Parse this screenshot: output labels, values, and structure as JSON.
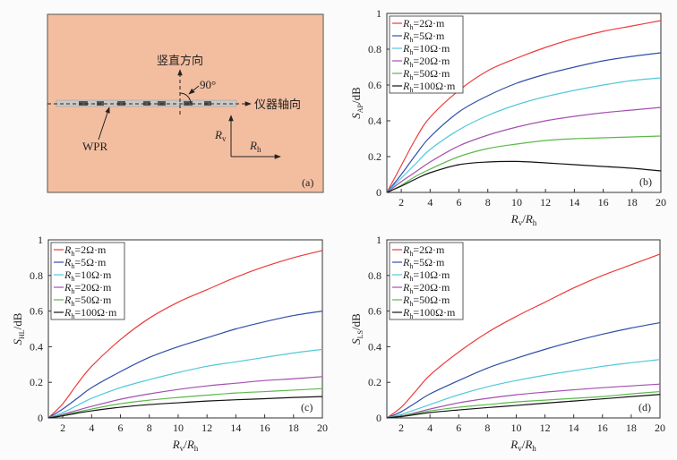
{
  "panel_a": {
    "vertical_label": "竖直方向",
    "angle_label": "90°",
    "axis_label": "仪器轴向",
    "tool_label": "WPR",
    "rv_main": "R",
    "rv_sub": "v",
    "rh_main": "R",
    "rh_sub": "h",
    "panel_tag": "(a)",
    "background_color": "#f3bea0"
  },
  "legend_labels": [
    "2Ω·m",
    "5Ω·m",
    "10Ω·m",
    "20Ω·m",
    "50Ω·m",
    "100Ω·m"
  ],
  "legend_prefix": {
    "main": "R",
    "sub": "h",
    "eq": "="
  },
  "series_colors": [
    "#ee3b3b",
    "#2f4fa8",
    "#52c8d8",
    "#a44fb0",
    "#5cb84a",
    "#111111"
  ],
  "chart_data": [
    {
      "type": "line",
      "panel_tag": "(b)",
      "ylabel": {
        "main": "S",
        "sub": "AP",
        "unit": "/dB"
      },
      "xlabel": {
        "a": "R",
        "a_sub": "v",
        "slash": "/",
        "b": "R",
        "b_sub": "h"
      },
      "xlim": [
        1,
        20
      ],
      "ylim": [
        0,
        1
      ],
      "xticks": [
        "2",
        "4",
        "6",
        "8",
        "10",
        "12",
        "14",
        "16",
        "18",
        "20"
      ],
      "yticks": [
        "0",
        "0.2",
        "0.4",
        "0.6",
        "0.8",
        "1"
      ],
      "legend_position": "top-left",
      "x": [
        1,
        2,
        3,
        4,
        6,
        8,
        10,
        12,
        14,
        16,
        18,
        20
      ],
      "series": [
        {
          "name": "Rh=2Ω·m",
          "values": [
            0,
            0.15,
            0.3,
            0.42,
            0.57,
            0.68,
            0.75,
            0.81,
            0.86,
            0.9,
            0.93,
            0.96
          ]
        },
        {
          "name": "Rh=5Ω·m",
          "values": [
            0,
            0.1,
            0.21,
            0.31,
            0.45,
            0.54,
            0.61,
            0.66,
            0.7,
            0.735,
            0.76,
            0.78
          ]
        },
        {
          "name": "Rh=10Ω·m",
          "values": [
            0,
            0.08,
            0.16,
            0.24,
            0.35,
            0.43,
            0.49,
            0.535,
            0.57,
            0.6,
            0.625,
            0.64
          ]
        },
        {
          "name": "Rh=20Ω·m",
          "values": [
            0,
            0.06,
            0.115,
            0.17,
            0.26,
            0.32,
            0.365,
            0.4,
            0.425,
            0.445,
            0.46,
            0.475
          ]
        },
        {
          "name": "Rh=50Ω·m",
          "values": [
            0,
            0.04,
            0.09,
            0.13,
            0.2,
            0.245,
            0.27,
            0.29,
            0.3,
            0.305,
            0.31,
            0.315
          ]
        },
        {
          "name": "Rh=100Ω·m",
          "values": [
            0,
            0.035,
            0.075,
            0.11,
            0.155,
            0.17,
            0.173,
            0.165,
            0.155,
            0.145,
            0.135,
            0.12
          ]
        }
      ]
    },
    {
      "type": "line",
      "panel_tag": "(c)",
      "ylabel": {
        "main": "S",
        "sub": "HL",
        "unit": "/dB"
      },
      "xlabel": {
        "a": "R",
        "a_sub": "v",
        "slash": "/",
        "b": "R",
        "b_sub": "h"
      },
      "xlim": [
        1,
        20
      ],
      "ylim": [
        0,
        1
      ],
      "xticks": [
        "2",
        "4",
        "6",
        "8",
        "10",
        "12",
        "14",
        "16",
        "18",
        "20"
      ],
      "yticks": [
        "0",
        "0.2",
        "0.4",
        "0.6",
        "0.8",
        "1"
      ],
      "legend_position": "top-left",
      "x": [
        1,
        2,
        3,
        4,
        6,
        8,
        10,
        12,
        14,
        16,
        18,
        20
      ],
      "series": [
        {
          "name": "Rh=2Ω·m",
          "values": [
            0,
            0.08,
            0.19,
            0.29,
            0.44,
            0.56,
            0.65,
            0.72,
            0.79,
            0.85,
            0.9,
            0.94
          ]
        },
        {
          "name": "Rh=5Ω·m",
          "values": [
            0,
            0.05,
            0.11,
            0.17,
            0.26,
            0.34,
            0.4,
            0.45,
            0.5,
            0.54,
            0.575,
            0.6
          ]
        },
        {
          "name": "Rh=10Ω·m",
          "values": [
            0,
            0.03,
            0.07,
            0.11,
            0.17,
            0.215,
            0.255,
            0.29,
            0.315,
            0.34,
            0.365,
            0.385
          ]
        },
        {
          "name": "Rh=20Ω·m",
          "values": [
            0,
            0.02,
            0.043,
            0.065,
            0.105,
            0.135,
            0.16,
            0.18,
            0.195,
            0.21,
            0.22,
            0.232
          ]
        },
        {
          "name": "Rh=50Ω·m",
          "values": [
            0,
            0.015,
            0.033,
            0.05,
            0.08,
            0.1,
            0.115,
            0.128,
            0.14,
            0.148,
            0.156,
            0.165
          ]
        },
        {
          "name": "Rh=100Ω·m",
          "values": [
            0,
            0.012,
            0.027,
            0.04,
            0.06,
            0.075,
            0.085,
            0.095,
            0.102,
            0.108,
            0.115,
            0.12
          ]
        }
      ]
    },
    {
      "type": "line",
      "panel_tag": "(d)",
      "ylabel": {
        "main": "S",
        "sub": "LS",
        "unit": "/dB"
      },
      "xlabel": {
        "a": "R",
        "a_sub": "v",
        "slash": "/",
        "b": "R",
        "b_sub": "h"
      },
      "xlim": [
        1,
        20
      ],
      "ylim": [
        0,
        1
      ],
      "xticks": [
        "2",
        "4",
        "6",
        "8",
        "10",
        "12",
        "14",
        "16",
        "18",
        "20"
      ],
      "yticks": [
        "0",
        "0.2",
        "0.4",
        "0.6",
        "0.8",
        "1"
      ],
      "legend_position": "top-left",
      "x": [
        1,
        2,
        3,
        4,
        6,
        8,
        10,
        12,
        14,
        16,
        18,
        20
      ],
      "series": [
        {
          "name": "Rh=2Ω·m",
          "values": [
            0,
            0.06,
            0.15,
            0.24,
            0.37,
            0.48,
            0.57,
            0.65,
            0.73,
            0.8,
            0.86,
            0.92
          ]
        },
        {
          "name": "Rh=5Ω·m",
          "values": [
            0,
            0.035,
            0.085,
            0.135,
            0.21,
            0.28,
            0.335,
            0.385,
            0.43,
            0.47,
            0.505,
            0.535
          ]
        },
        {
          "name": "Rh=10Ω·m",
          "values": [
            0,
            0.02,
            0.047,
            0.075,
            0.13,
            0.175,
            0.21,
            0.24,
            0.265,
            0.29,
            0.31,
            0.328
          ]
        },
        {
          "name": "Rh=20Ω·m",
          "values": [
            0,
            0.012,
            0.03,
            0.05,
            0.085,
            0.11,
            0.13,
            0.145,
            0.158,
            0.17,
            0.18,
            0.19
          ]
        },
        {
          "name": "Rh=50Ω·m",
          "values": [
            0,
            0.01,
            0.025,
            0.04,
            0.06,
            0.075,
            0.09,
            0.1,
            0.11,
            0.12,
            0.135,
            0.148
          ]
        },
        {
          "name": "Rh=100Ω·m",
          "values": [
            0,
            0.008,
            0.019,
            0.03,
            0.045,
            0.058,
            0.07,
            0.083,
            0.095,
            0.107,
            0.12,
            0.132
          ]
        }
      ]
    }
  ]
}
